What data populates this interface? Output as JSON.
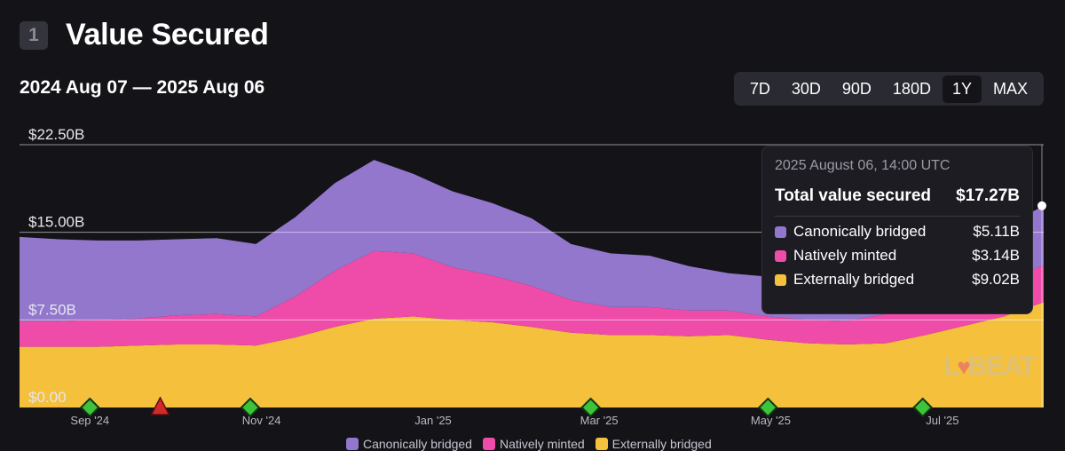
{
  "header": {
    "badge": "1",
    "title": "Value Secured"
  },
  "date_range": "2024 Aug 07 — 2025 Aug 06",
  "timeframes": [
    {
      "label": "7D",
      "active": false
    },
    {
      "label": "30D",
      "active": false
    },
    {
      "label": "90D",
      "active": false
    },
    {
      "label": "180D",
      "active": false
    },
    {
      "label": "1Y",
      "active": true
    },
    {
      "label": "MAX",
      "active": false
    }
  ],
  "tooltip": {
    "date": "2025 August 06, 14:00 UTC",
    "total_label": "Total value secured",
    "total_value": "$17.27B",
    "rows": [
      {
        "label": "Canonically bridged",
        "value": "$5.11B",
        "color": "#9277cc"
      },
      {
        "label": "Natively minted",
        "value": "$3.14B",
        "color": "#ee4ca8"
      },
      {
        "label": "Externally bridged",
        "value": "$9.02B",
        "color": "#f5c13c"
      }
    ]
  },
  "watermark": {
    "left": "L",
    "right": "BEAT"
  },
  "colors": {
    "canonical": "#9277cc",
    "native": "#ee4ca8",
    "external": "#f5c13c",
    "background": "#141318"
  },
  "chart_data": {
    "type": "area",
    "stacked": true,
    "unit": "billion USD",
    "y_tick_labels": [
      "$0.00",
      "$7.50B",
      "$15.00B",
      "$22.50B"
    ],
    "y_ticks": [
      0,
      7.5,
      15,
      22.5
    ],
    "ylim": [
      0,
      22.5
    ],
    "x_range": [
      "2024-08-07",
      "2025-08-06"
    ],
    "x_tick_labels": [
      "Sep '24",
      "Nov '24",
      "Jan '25",
      "Mar '25",
      "May '25",
      "Jul '25"
    ],
    "x_ticks": [
      "2024-09-01",
      "2024-11-01",
      "2025-01-01",
      "2025-03-01",
      "2025-05-01",
      "2025-07-01"
    ],
    "dates": [
      "2024-08-07",
      "2024-08-21",
      "2024-09-04",
      "2024-09-18",
      "2024-10-02",
      "2024-10-16",
      "2024-10-30",
      "2024-11-13",
      "2024-11-27",
      "2024-12-11",
      "2024-12-25",
      "2025-01-08",
      "2025-01-22",
      "2025-02-05",
      "2025-02-19",
      "2025-03-05",
      "2025-03-19",
      "2025-04-02",
      "2025-04-16",
      "2025-04-30",
      "2025-05-14",
      "2025-05-28",
      "2025-06-11",
      "2025-06-25",
      "2025-07-09",
      "2025-07-23",
      "2025-08-06"
    ],
    "series": [
      {
        "name": "Externally bridged",
        "values": [
          5.2,
          5.2,
          5.2,
          5.3,
          5.4,
          5.4,
          5.3,
          6.0,
          6.9,
          7.6,
          7.8,
          7.5,
          7.3,
          6.9,
          6.4,
          6.2,
          6.2,
          6.1,
          6.2,
          5.8,
          5.5,
          5.4,
          5.5,
          6.2,
          7.0,
          7.8,
          9.02
        ]
      },
      {
        "name": "Natively minted",
        "values": [
          2.2,
          2.2,
          2.3,
          2.3,
          2.5,
          2.6,
          2.5,
          3.5,
          4.8,
          5.8,
          5.4,
          4.5,
          4.0,
          3.5,
          2.8,
          2.4,
          2.4,
          2.2,
          2.1,
          2.0,
          2.0,
          2.0,
          2.5,
          2.9,
          3.0,
          3.1,
          3.14
        ]
      },
      {
        "name": "Canonically bridged",
        "values": [
          7.2,
          7.0,
          6.8,
          6.7,
          6.5,
          6.5,
          6.2,
          6.8,
          7.5,
          7.8,
          6.8,
          6.5,
          6.2,
          5.8,
          4.8,
          4.6,
          4.4,
          3.8,
          3.2,
          3.4,
          3.5,
          3.6,
          3.8,
          4.0,
          4.3,
          4.6,
          5.11
        ]
      }
    ],
    "legend": {
      "position": "bottom",
      "entries": [
        "Canonically bridged",
        "Natively minted",
        "Externally bridged"
      ]
    },
    "grid": true,
    "event_markers": [
      {
        "date": "2024-09-01",
        "kind": "diamond"
      },
      {
        "date": "2024-09-26",
        "kind": "warning"
      },
      {
        "date": "2024-10-28",
        "kind": "diamond"
      },
      {
        "date": "2025-02-26",
        "kind": "diamond"
      },
      {
        "date": "2025-04-30",
        "kind": "diamond"
      },
      {
        "date": "2025-06-24",
        "kind": "diamond"
      }
    ]
  }
}
